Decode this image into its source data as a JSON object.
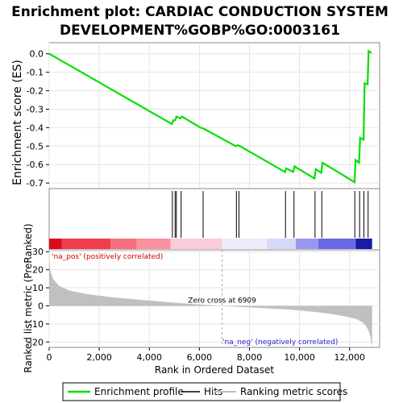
{
  "title_line1": "Enrichment plot: CARDIAC CONDUCTION SYSTEM",
  "title_line2": "DEVELOPMENT%GOBP%GO:0003161",
  "colors": {
    "es_line": "#00e000",
    "hit": "#000000",
    "metric_fill": "#c0c0c0",
    "pos_label": "#cc0000",
    "neg_label": "#2222cc"
  },
  "chart_data": [
    {
      "type": "line",
      "name": "enrichment-score-panel",
      "ylabel": "Enrichment score (ES)",
      "ylim": [
        -0.73,
        0.06
      ],
      "xlim": [
        0,
        13200
      ],
      "yticks": [
        0.0,
        -0.1,
        -0.2,
        -0.3,
        -0.4,
        -0.5,
        -0.6,
        -0.7
      ],
      "ytick_labels": [
        "0.0",
        "-0.1",
        "-0.2",
        "-0.3",
        "-0.4",
        "-0.5",
        "-0.6",
        "-0.7"
      ],
      "grid": true,
      "series": [
        {
          "name": "Enrichment profile",
          "x": [
            0,
            4900,
            4960,
            5040,
            5080,
            5240,
            5300,
            6050,
            6170,
            7450,
            7520,
            7620,
            9420,
            9470,
            9750,
            9800,
            10600,
            10650,
            10870,
            10920,
            12200,
            12240,
            12380,
            12420,
            12560,
            12600,
            12720,
            12760,
            12870
          ],
          "y": [
            0.0,
            -0.38,
            -0.36,
            -0.36,
            -0.34,
            -0.35,
            -0.34,
            -0.4,
            -0.405,
            -0.5,
            -0.495,
            -0.5,
            -0.64,
            -0.62,
            -0.64,
            -0.61,
            -0.675,
            -0.625,
            -0.645,
            -0.59,
            -0.695,
            -0.575,
            -0.59,
            -0.455,
            -0.465,
            -0.16,
            -0.165,
            0.015,
            0.005
          ]
        }
      ]
    },
    {
      "type": "bar",
      "name": "hits-panel",
      "legend_name": "Hits",
      "hit_ranks": [
        4920,
        5030,
        5080,
        5270,
        6150,
        7480,
        7580,
        9440,
        9780,
        10620,
        10890,
        12210,
        12400,
        12570,
        12740
      ]
    },
    {
      "type": "heatmap",
      "name": "rank-color-bar",
      "segments": [
        {
          "from": 0,
          "to": 500,
          "color": "#dd0a1c"
        },
        {
          "from": 500,
          "to": 2450,
          "color": "#f03c4c"
        },
        {
          "from": 2450,
          "to": 3500,
          "color": "#f5707c"
        },
        {
          "from": 3500,
          "to": 4850,
          "color": "#f8929c"
        },
        {
          "from": 4850,
          "to": 6900,
          "color": "#fbcbd8"
        },
        {
          "from": 6900,
          "to": 8700,
          "color": "#ececfc"
        },
        {
          "from": 8700,
          "to": 9850,
          "color": "#d8d8f8"
        },
        {
          "from": 9850,
          "to": 10750,
          "color": "#9898ee"
        },
        {
          "from": 10750,
          "to": 12250,
          "color": "#6a6ae6"
        },
        {
          "from": 12250,
          "to": 12900,
          "color": "#1a1aa8"
        }
      ]
    },
    {
      "type": "area",
      "name": "ranked-list-metric-panel",
      "ylabel": "Ranked list metric (PreRanked)",
      "xlabel": "Rank in Ordered Dataset",
      "ylim": [
        -23,
        31
      ],
      "xlim": [
        0,
        13200
      ],
      "yticks": [
        30,
        20,
        10,
        0,
        -10,
        -20
      ],
      "ytick_labels": [
        "30",
        "20",
        "10",
        "0",
        "-10",
        "-20"
      ],
      "xticks": [
        0,
        2000,
        4000,
        6000,
        8000,
        10000,
        12000
      ],
      "xtick_labels": [
        "0",
        "2,000",
        "4,000",
        "6,000",
        "8,000",
        "10,000",
        "12,000"
      ],
      "grid": true,
      "series": [
        {
          "name": "Ranking metric scores",
          "x": [
            0,
            40,
            150,
            400,
            800,
            1500,
            2500,
            3500,
            4500,
            5500,
            6909,
            7500,
            8500,
            9500,
            10500,
            11000,
            11500,
            12000,
            12300,
            12500,
            12650,
            12750,
            12820,
            12860,
            12900
          ],
          "y": [
            30,
            20,
            15,
            11,
            8.5,
            6.5,
            4.8,
            3.5,
            2.3,
            1.2,
            0,
            -0.5,
            -1.2,
            -2,
            -3.2,
            -4,
            -5,
            -6.3,
            -7.5,
            -9,
            -11,
            -13.5,
            -16.5,
            -20,
            -22.5
          ]
        }
      ]
    }
  ],
  "annotations": {
    "pos_label": "'na_pos' (positively correlated)",
    "neg_label": "'na_neg' (negatively correlated)",
    "zero_cross": "Zero cross at 6909",
    "zero_cross_rank": 6909
  },
  "legend": {
    "items": [
      {
        "label": "Enrichment profile",
        "color": "#00e000",
        "kind": "line"
      },
      {
        "label": "Hits",
        "color": "#000000",
        "kind": "hit"
      },
      {
        "label": "Ranking metric scores",
        "color": "#c0c0c0",
        "kind": "line"
      }
    ]
  }
}
